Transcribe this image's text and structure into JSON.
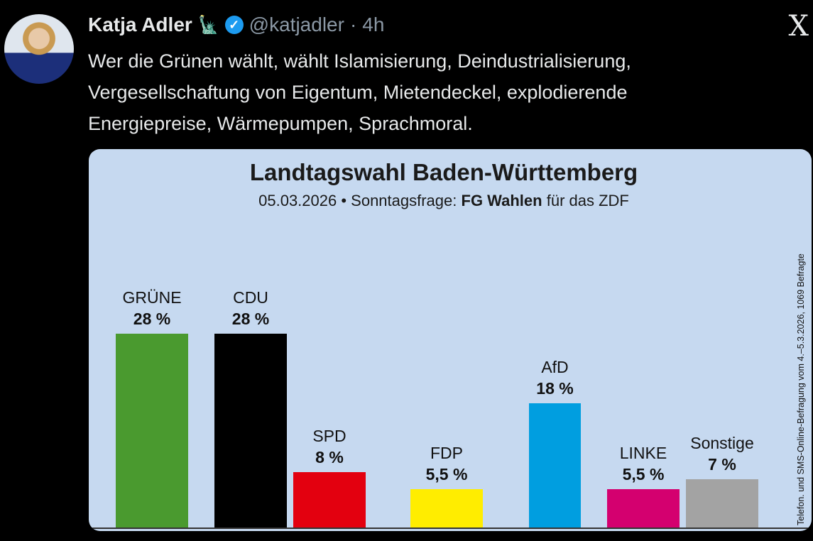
{
  "tweet": {
    "author_name": "Katja Adler",
    "author_emoji": "🗽",
    "verified_icon": "verified-badge-icon",
    "handle": "@katjadler",
    "separator": "·",
    "time": "4h",
    "platform_logo": "X",
    "text": "Wer die Grünen wählt, wählt Islamisierung, Deindustrialisierung,\nVergesellschaftung von Eigentum, Mietendeckel, explodierende\nEnergiepreise, Wärmepumpen, Sprachmoral."
  },
  "chart_data": {
    "type": "bar",
    "title": "Landtagswahl Baden-Württemberg",
    "subtitle_prefix": "05.03.2026 • Sonntagsfrage:",
    "subtitle_bold": "FG Wahlen",
    "subtitle_suffix": "für das ZDF",
    "side_note": "Telefon. und SMS-Online-Befragung vom 4.–5.3.2026, 1069 Befragte",
    "categories": [
      "GRÜNE",
      "CDU",
      "SPD",
      "FDP",
      "AfD",
      "LINKE",
      "Sonstige"
    ],
    "values": [
      28,
      28,
      8,
      5.5,
      18,
      5.5,
      7
    ],
    "value_labels": [
      "28 %",
      "28 %",
      "8 %",
      "5,5 %",
      "18 %",
      "5,5 %",
      "7 %"
    ],
    "colors": [
      "#4a9a2f",
      "#000000",
      "#e3000f",
      "#ffed00",
      "#009ee0",
      "#d4006f",
      "#a3a3a3"
    ],
    "ylim": [
      0,
      28
    ],
    "grid": false,
    "background": "#c6d9f0"
  }
}
